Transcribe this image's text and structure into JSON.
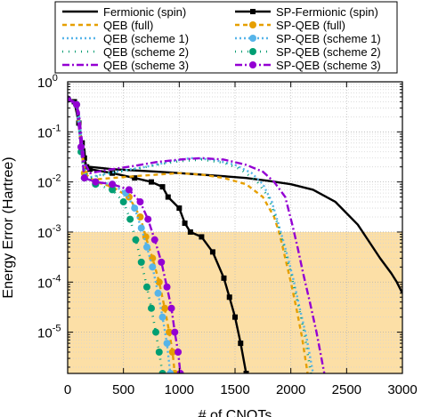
{
  "chart_data": {
    "type": "line",
    "xlabel": "# of CNOTs",
    "ylabel": "Energy Error (Hartree)",
    "xlim": [
      0,
      3000
    ],
    "ylim": [
      1.5e-06,
      1
    ],
    "yscale": "log",
    "grid": true,
    "legend_position": "top, two columns",
    "x_ticks": [
      "0",
      "500",
      "1000",
      "1500",
      "2000",
      "2500",
      "3000"
    ],
    "y_ticks": [
      {
        "v": 1,
        "m": "0"
      },
      {
        "v": 0.1,
        "m": "-1"
      },
      {
        "v": 0.01,
        "m": "-2"
      },
      {
        "v": 0.001,
        "m": "-3"
      },
      {
        "v": 0.0001,
        "m": "-4"
      },
      {
        "v": 1e-05,
        "m": "-5"
      }
    ],
    "shaded_region": {
      "y_min": 1.5e-06,
      "y_max": 0.001,
      "color": "#fcdfa6"
    },
    "series": [
      {
        "name": "Fermionic (spin)",
        "color": "#000000",
        "dash": "",
        "width": 2.4,
        "marker": "none",
        "points": [
          [
            0,
            0.45
          ],
          [
            80,
            0.4
          ],
          [
            100,
            0.2
          ],
          [
            120,
            0.06
          ],
          [
            150,
            0.045
          ],
          [
            160,
            0.02
          ],
          [
            200,
            0.02
          ],
          [
            300,
            0.019
          ],
          [
            400,
            0.018
          ],
          [
            600,
            0.017
          ],
          [
            800,
            0.016
          ],
          [
            1000,
            0.015
          ],
          [
            1200,
            0.014
          ],
          [
            1400,
            0.013
          ],
          [
            1600,
            0.012
          ],
          [
            1800,
            0.0105
          ],
          [
            2000,
            0.009
          ],
          [
            2200,
            0.007
          ],
          [
            2400,
            0.004
          ],
          [
            2600,
            0.0014
          ],
          [
            2700,
            0.00065
          ],
          [
            2800,
            0.0003
          ],
          [
            2900,
            0.00015
          ],
          [
            2950,
            0.0001
          ],
          [
            3000,
            6e-05
          ]
        ]
      },
      {
        "name": "SP-Fermionic (spin)",
        "color": "#000000",
        "dash": "",
        "width": 2.4,
        "marker": "square",
        "points": [
          [
            0,
            0.45
          ],
          [
            60,
            0.4
          ],
          [
            100,
            0.15
          ],
          [
            130,
            0.06
          ],
          [
            150,
            0.03
          ],
          [
            170,
            0.02
          ],
          [
            200,
            0.018
          ],
          [
            400,
            0.015
          ],
          [
            600,
            0.012
          ],
          [
            750,
            0.01
          ],
          [
            850,
            0.008
          ],
          [
            900,
            0.005
          ],
          [
            1000,
            0.003
          ],
          [
            1050,
            0.0015
          ],
          [
            1100,
            0.001
          ],
          [
            1200,
            0.0008
          ],
          [
            1300,
            0.0004
          ],
          [
            1400,
            0.00012
          ],
          [
            1450,
            5e-05
          ],
          [
            1500,
            2e-05
          ],
          [
            1550,
            6e-06
          ],
          [
            1600,
            1.5e-06
          ]
        ]
      },
      {
        "name": "QEB (full)",
        "color": "#e69f00",
        "dash": "5,4",
        "width": 2.4,
        "marker": "none",
        "points": [
          [
            0,
            0.45
          ],
          [
            60,
            0.4
          ],
          [
            100,
            0.2
          ],
          [
            130,
            0.04
          ],
          [
            150,
            0.02
          ],
          [
            170,
            0.012
          ],
          [
            200,
            0.011
          ],
          [
            400,
            0.012
          ],
          [
            600,
            0.013
          ],
          [
            800,
            0.014
          ],
          [
            1000,
            0.015
          ],
          [
            1200,
            0.014
          ],
          [
            1400,
            0.012
          ],
          [
            1600,
            0.009
          ],
          [
            1750,
            0.005
          ],
          [
            1850,
            0.002
          ],
          [
            1900,
            0.0009
          ],
          [
            1950,
            0.0003
          ],
          [
            2000,
            0.0001
          ],
          [
            2050,
            3e-05
          ],
          [
            2100,
            8e-06
          ],
          [
            2150,
            1.5e-06
          ]
        ]
      },
      {
        "name": "SP-QEB (full)",
        "color": "#e69f00",
        "dash": "5,4",
        "width": 2.4,
        "marker": "circle",
        "points": [
          [
            0,
            0.45
          ],
          [
            80,
            0.35
          ],
          [
            120,
            0.05
          ],
          [
            150,
            0.015
          ],
          [
            250,
            0.01
          ],
          [
            400,
            0.008
          ],
          [
            550,
            0.005
          ],
          [
            650,
            0.002
          ],
          [
            700,
            0.0008
          ],
          [
            760,
            0.0003
          ],
          [
            820,
            0.0001
          ],
          [
            870,
            3e-05
          ],
          [
            910,
            1e-05
          ],
          [
            940,
            4e-06
          ],
          [
            960,
            1.5e-06
          ]
        ]
      },
      {
        "name": "QEB (scheme 1)",
        "color": "#56b4e9",
        "dash": "2,3",
        "width": 2.4,
        "marker": "none",
        "points": [
          [
            0,
            0.45
          ],
          [
            60,
            0.4
          ],
          [
            100,
            0.25
          ],
          [
            130,
            0.05
          ],
          [
            150,
            0.02
          ],
          [
            170,
            0.012
          ],
          [
            300,
            0.014
          ],
          [
            500,
            0.017
          ],
          [
            700,
            0.02
          ],
          [
            900,
            0.025
          ],
          [
            1100,
            0.03
          ],
          [
            1300,
            0.028
          ],
          [
            1500,
            0.022
          ],
          [
            1650,
            0.015
          ],
          [
            1750,
            0.009
          ],
          [
            1830,
            0.004
          ],
          [
            1900,
            0.0012
          ],
          [
            1960,
            0.0004
          ],
          [
            2020,
            0.00012
          ],
          [
            2080,
            3e-05
          ],
          [
            2140,
            8e-06
          ],
          [
            2200,
            1.5e-06
          ]
        ]
      },
      {
        "name": "SP-QEB (scheme 1)",
        "color": "#56b4e9",
        "dash": "2,3",
        "width": 2.4,
        "marker": "circle",
        "points": [
          [
            0,
            0.45
          ],
          [
            80,
            0.35
          ],
          [
            120,
            0.05
          ],
          [
            150,
            0.012
          ],
          [
            250,
            0.01
          ],
          [
            400,
            0.009
          ],
          [
            520,
            0.006
          ],
          [
            600,
            0.003
          ],
          [
            660,
            0.0012
          ],
          [
            710,
            0.0005
          ],
          [
            760,
            0.0002
          ],
          [
            810,
            6e-05
          ],
          [
            850,
            2e-05
          ],
          [
            890,
            6e-06
          ],
          [
            920,
            1.5e-06
          ]
        ]
      },
      {
        "name": "QEB (scheme 2)",
        "color": "#009e73",
        "dash": "1,6",
        "width": 2.6,
        "marker": "none",
        "points": [
          [
            0,
            0.45
          ],
          [
            60,
            0.4
          ],
          [
            100,
            0.2
          ],
          [
            130,
            0.04
          ],
          [
            150,
            0.016
          ],
          [
            200,
            0.012
          ],
          [
            400,
            0.015
          ],
          [
            600,
            0.018
          ],
          [
            800,
            0.022
          ],
          [
            1000,
            0.026
          ],
          [
            1200,
            0.028
          ],
          [
            1400,
            0.024
          ],
          [
            1550,
            0.018
          ],
          [
            1700,
            0.01
          ],
          [
            1800,
            0.005
          ],
          [
            1880,
            0.0015
          ],
          [
            1940,
            0.0005
          ],
          [
            2000,
            0.00015
          ],
          [
            2060,
            4e-05
          ],
          [
            2120,
            1e-05
          ],
          [
            2180,
            1.5e-06
          ]
        ]
      },
      {
        "name": "SP-QEB (scheme 2)",
        "color": "#009e73",
        "dash": "1,6",
        "width": 2.6,
        "marker": "circle",
        "points": [
          [
            0,
            0.45
          ],
          [
            80,
            0.35
          ],
          [
            120,
            0.04
          ],
          [
            150,
            0.012
          ],
          [
            250,
            0.009
          ],
          [
            400,
            0.007
          ],
          [
            500,
            0.004
          ],
          [
            560,
            0.0018
          ],
          [
            610,
            0.0007
          ],
          [
            660,
            0.00025
          ],
          [
            710,
            8e-05
          ],
          [
            750,
            3e-05
          ],
          [
            790,
            1e-05
          ],
          [
            820,
            4e-06
          ],
          [
            850,
            1.5e-06
          ]
        ]
      },
      {
        "name": "QEB (scheme 3)",
        "color": "#9400d3",
        "dash": "8,3,2,3",
        "width": 2.4,
        "marker": "none",
        "points": [
          [
            0,
            0.45
          ],
          [
            60,
            0.4
          ],
          [
            100,
            0.25
          ],
          [
            130,
            0.06
          ],
          [
            150,
            0.025
          ],
          [
            200,
            0.015
          ],
          [
            400,
            0.018
          ],
          [
            600,
            0.021
          ],
          [
            800,
            0.025
          ],
          [
            1000,
            0.028
          ],
          [
            1200,
            0.03
          ],
          [
            1400,
            0.028
          ],
          [
            1600,
            0.022
          ],
          [
            1750,
            0.016
          ],
          [
            1850,
            0.01
          ],
          [
            1950,
            0.005
          ],
          [
            2010,
            0.0015
          ],
          [
            2060,
            0.0005
          ],
          [
            2110,
            0.00015
          ],
          [
            2170,
            4e-05
          ],
          [
            2230,
            1e-05
          ],
          [
            2300,
            1.5e-06
          ]
        ]
      },
      {
        "name": "SP-QEB (scheme 3)",
        "color": "#9400d3",
        "dash": "8,3,2,3",
        "width": 2.4,
        "marker": "circle",
        "points": [
          [
            0,
            0.45
          ],
          [
            80,
            0.35
          ],
          [
            120,
            0.05
          ],
          [
            150,
            0.012
          ],
          [
            250,
            0.01
          ],
          [
            400,
            0.009
          ],
          [
            550,
            0.007
          ],
          [
            650,
            0.004
          ],
          [
            720,
            0.0018
          ],
          [
            780,
            0.0007
          ],
          [
            840,
            0.00025
          ],
          [
            890,
            8e-05
          ],
          [
            930,
            3e-05
          ],
          [
            960,
            1e-05
          ],
          [
            990,
            4e-06
          ],
          [
            1010,
            1.5e-06
          ]
        ]
      }
    ]
  }
}
